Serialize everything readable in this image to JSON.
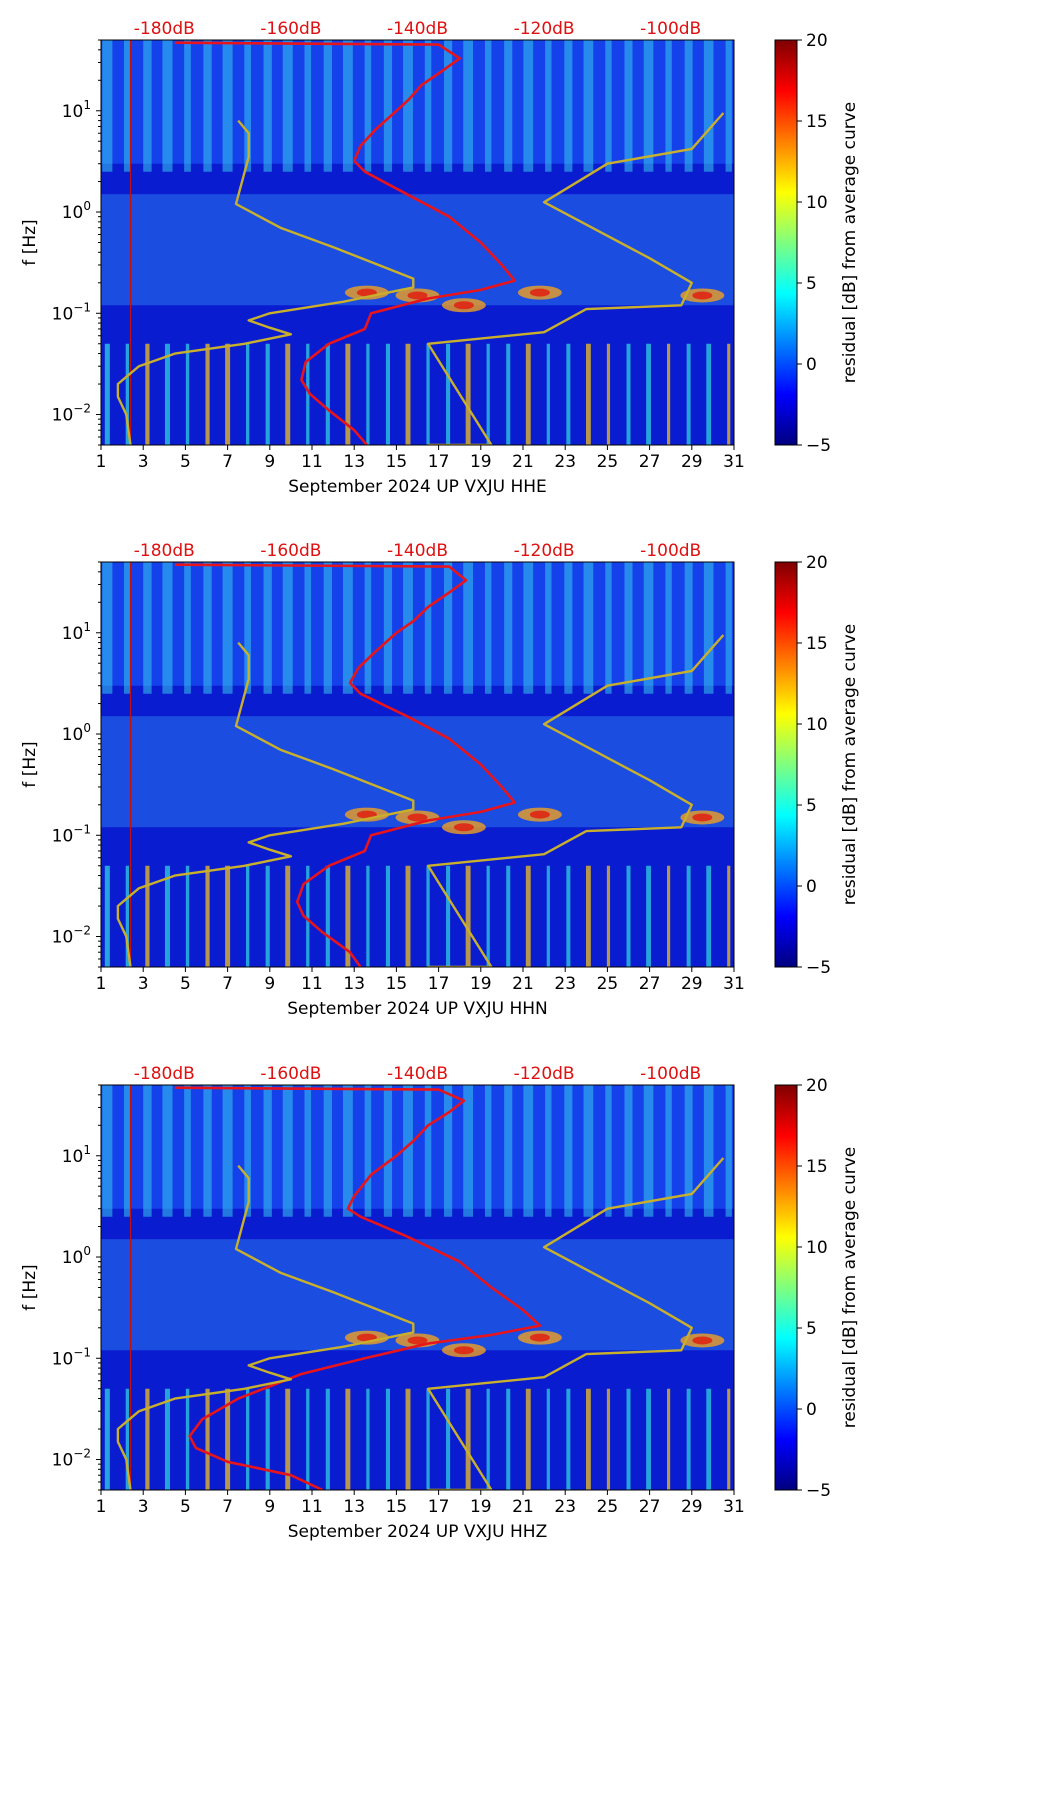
{
  "figure": {
    "colorbar_label": "residual [dB] from average curve",
    "colorbar_ticks": [
      "20",
      "15",
      "10",
      "5",
      "0",
      "−5"
    ],
    "colorbar_values": [
      20,
      15,
      10,
      5,
      0,
      -5
    ],
    "colormap_colors": [
      "#00007f",
      "#0000ff",
      "#007fff",
      "#00ffff",
      "#7fff7f",
      "#ffff00",
      "#ff7f00",
      "#ff0000",
      "#7f0000"
    ],
    "power_curve_color": "#e8141c",
    "daylength_curve_color": "#c9b02c",
    "top_axis_color": "#e01010"
  },
  "chart_data": [
    {
      "type": "heatmap",
      "xlabel": "September 2024 UP VXJU  HHE",
      "ylabel": "f [Hz]",
      "x_ticks": [
        "1",
        "3",
        "5",
        "7",
        "9",
        "11",
        "13",
        "15",
        "17",
        "19",
        "21",
        "23",
        "25",
        "27",
        "29",
        "31"
      ],
      "x_tick_values": [
        1,
        3,
        5,
        7,
        9,
        11,
        13,
        15,
        17,
        19,
        21,
        23,
        25,
        27,
        29,
        31
      ],
      "xlim": [
        1,
        31
      ],
      "y_scale": "log",
      "ylim": [
        0.005,
        50
      ],
      "y_ticks": [
        {
          "base": "10",
          "exp": "1",
          "value": 10
        },
        {
          "base": "10",
          "exp": "0",
          "value": 1
        },
        {
          "base": "10",
          "exp": "−1",
          "value": 0.1
        },
        {
          "base": "10",
          "exp": "−2",
          "value": 0.01
        }
      ],
      "top_axis_labels": [
        "-180dB",
        "-160dB",
        "-140dB",
        "-120dB",
        "-100dB"
      ],
      "top_axis_positions": [
        4.0,
        10.0,
        16.0,
        22.0,
        28.0
      ],
      "colorbar_range": [
        -5,
        20
      ],
      "series": [
        {
          "name": "average power curve",
          "points": [
            [
              13.6,
              0.005
            ],
            [
              13.0,
              0.007
            ],
            [
              11.8,
              0.011
            ],
            [
              10.9,
              0.016
            ],
            [
              10.5,
              0.022
            ],
            [
              10.7,
              0.033
            ],
            [
              11.8,
              0.05
            ],
            [
              13.5,
              0.07
            ],
            [
              13.8,
              0.1
            ],
            [
              16.5,
              0.14
            ],
            [
              19.0,
              0.17
            ],
            [
              20.6,
              0.21
            ],
            [
              20.0,
              0.3
            ],
            [
              19.0,
              0.5
            ],
            [
              17.5,
              0.9
            ],
            [
              15.5,
              1.5
            ],
            [
              13.5,
              2.5
            ],
            [
              13.0,
              3.2
            ],
            [
              13.3,
              4.5
            ],
            [
              14.0,
              6.5
            ],
            [
              15.0,
              10
            ],
            [
              15.6,
              13
            ],
            [
              16.2,
              18
            ],
            [
              17.2,
              25
            ],
            [
              18.0,
              33
            ],
            [
              17.0,
              45
            ],
            [
              4.5,
              47
            ]
          ]
        },
        {
          "name": "day-length curve",
          "points": [
            [
              2.4,
              0.005
            ],
            [
              2.2,
              0.01
            ],
            [
              1.8,
              0.015
            ],
            [
              1.8,
              0.02
            ],
            [
              2.8,
              0.03
            ],
            [
              4.5,
              0.04
            ],
            [
              7.8,
              0.05
            ],
            [
              10.0,
              0.062
            ],
            [
              9.0,
              0.072
            ],
            [
              8.0,
              0.085
            ],
            [
              9.0,
              0.1
            ],
            [
              12.5,
              0.13
            ],
            [
              15.8,
              0.18
            ],
            [
              15.8,
              0.22
            ],
            [
              12.0,
              0.45
            ],
            [
              9.5,
              0.7
            ],
            [
              7.4,
              1.2
            ],
            [
              8.0,
              3.5
            ],
            [
              8.0,
              6
            ],
            [
              7.5,
              8
            ],
            [
              16.5,
              0.005
            ],
            [
              19.5,
              0.005
            ],
            [
              16.5,
              0.05
            ],
            [
              22.0,
              0.065
            ],
            [
              24.0,
              0.11
            ],
            [
              28.5,
              0.12
            ],
            [
              29.0,
              0.2
            ],
            [
              27.0,
              0.35
            ],
            [
              22.0,
              1.25
            ],
            [
              25.0,
              3.0
            ],
            [
              29.0,
              4.2
            ],
            [
              30.5,
              9.5
            ]
          ]
        }
      ]
    },
    {
      "type": "heatmap",
      "xlabel": "September 2024 UP VXJU  HHN",
      "ylabel": "f [Hz]",
      "x_ticks": [
        "1",
        "3",
        "5",
        "7",
        "9",
        "11",
        "13",
        "15",
        "17",
        "19",
        "21",
        "23",
        "25",
        "27",
        "29",
        "31"
      ],
      "x_tick_values": [
        1,
        3,
        5,
        7,
        9,
        11,
        13,
        15,
        17,
        19,
        21,
        23,
        25,
        27,
        29,
        31
      ],
      "xlim": [
        1,
        31
      ],
      "y_scale": "log",
      "ylim": [
        0.005,
        50
      ],
      "y_ticks": [
        {
          "base": "10",
          "exp": "1",
          "value": 10
        },
        {
          "base": "10",
          "exp": "0",
          "value": 1
        },
        {
          "base": "10",
          "exp": "−1",
          "value": 0.1
        },
        {
          "base": "10",
          "exp": "−2",
          "value": 0.01
        }
      ],
      "top_axis_labels": [
        "-180dB",
        "-160dB",
        "-140dB",
        "-120dB",
        "-100dB"
      ],
      "top_axis_positions": [
        4.0,
        10.0,
        16.0,
        22.0,
        28.0
      ],
      "colorbar_range": [
        -5,
        20
      ],
      "series": [
        {
          "name": "average power curve",
          "points": [
            [
              13.3,
              0.005
            ],
            [
              12.8,
              0.007
            ],
            [
              11.5,
              0.011
            ],
            [
              10.6,
              0.016
            ],
            [
              10.3,
              0.022
            ],
            [
              10.6,
              0.033
            ],
            [
              11.8,
              0.05
            ],
            [
              13.5,
              0.07
            ],
            [
              13.8,
              0.1
            ],
            [
              16.5,
              0.14
            ],
            [
              19.0,
              0.17
            ],
            [
              20.6,
              0.21
            ],
            [
              20.0,
              0.3
            ],
            [
              19.0,
              0.5
            ],
            [
              17.5,
              0.9
            ],
            [
              15.5,
              1.5
            ],
            [
              13.3,
              2.5
            ],
            [
              12.8,
              3.2
            ],
            [
              13.2,
              4.5
            ],
            [
              14.0,
              6.5
            ],
            [
              15.0,
              10
            ],
            [
              15.8,
              13
            ],
            [
              16.5,
              18
            ],
            [
              17.5,
              25
            ],
            [
              18.3,
              33
            ],
            [
              17.5,
              45
            ],
            [
              4.5,
              47
            ]
          ]
        },
        {
          "name": "day-length curve",
          "points": [
            [
              2.4,
              0.005
            ],
            [
              2.2,
              0.01
            ],
            [
              1.8,
              0.015
            ],
            [
              1.8,
              0.02
            ],
            [
              2.8,
              0.03
            ],
            [
              4.5,
              0.04
            ],
            [
              7.8,
              0.05
            ],
            [
              10.0,
              0.062
            ],
            [
              9.0,
              0.072
            ],
            [
              8.0,
              0.085
            ],
            [
              9.0,
              0.1
            ],
            [
              12.5,
              0.13
            ],
            [
              15.8,
              0.18
            ],
            [
              15.8,
              0.22
            ],
            [
              12.0,
              0.45
            ],
            [
              9.5,
              0.7
            ],
            [
              7.4,
              1.2
            ],
            [
              8.0,
              3.5
            ],
            [
              8.0,
              6
            ],
            [
              7.5,
              8
            ],
            [
              16.5,
              0.005
            ],
            [
              19.5,
              0.005
            ],
            [
              16.5,
              0.05
            ],
            [
              22.0,
              0.065
            ],
            [
              24.0,
              0.11
            ],
            [
              28.5,
              0.12
            ],
            [
              29.0,
              0.2
            ],
            [
              27.0,
              0.35
            ],
            [
              22.0,
              1.25
            ],
            [
              25.0,
              3.0
            ],
            [
              29.0,
              4.2
            ],
            [
              30.5,
              9.5
            ]
          ]
        }
      ]
    },
    {
      "type": "heatmap",
      "xlabel": "September 2024 UP VXJU  HHZ",
      "ylabel": "f [Hz]",
      "x_ticks": [
        "1",
        "3",
        "5",
        "7",
        "9",
        "11",
        "13",
        "15",
        "17",
        "19",
        "21",
        "23",
        "25",
        "27",
        "29",
        "31"
      ],
      "x_tick_values": [
        1,
        3,
        5,
        7,
        9,
        11,
        13,
        15,
        17,
        19,
        21,
        23,
        25,
        27,
        29,
        31
      ],
      "xlim": [
        1,
        31
      ],
      "y_scale": "log",
      "ylim": [
        0.005,
        50
      ],
      "y_ticks": [
        {
          "base": "10",
          "exp": "1",
          "value": 10
        },
        {
          "base": "10",
          "exp": "0",
          "value": 1
        },
        {
          "base": "10",
          "exp": "−1",
          "value": 0.1
        },
        {
          "base": "10",
          "exp": "−2",
          "value": 0.01
        }
      ],
      "top_axis_labels": [
        "-180dB",
        "-160dB",
        "-140dB",
        "-120dB",
        "-100dB"
      ],
      "top_axis_positions": [
        4.0,
        10.0,
        16.0,
        22.0,
        28.0
      ],
      "colorbar_range": [
        -5,
        20
      ],
      "series": [
        {
          "name": "average power curve",
          "points": [
            [
              11.5,
              0.005
            ],
            [
              10.0,
              0.007
            ],
            [
              7.0,
              0.0095
            ],
            [
              5.5,
              0.013
            ],
            [
              5.2,
              0.017
            ],
            [
              5.8,
              0.025
            ],
            [
              7.5,
              0.04
            ],
            [
              10.5,
              0.07
            ],
            [
              13.5,
              0.1
            ],
            [
              16.5,
              0.14
            ],
            [
              19.5,
              0.17
            ],
            [
              21.8,
              0.21
            ],
            [
              21.0,
              0.3
            ],
            [
              19.5,
              0.5
            ],
            [
              18.0,
              0.9
            ],
            [
              15.5,
              1.6
            ],
            [
              13.3,
              2.5
            ],
            [
              12.7,
              3.0
            ],
            [
              13.0,
              4.0
            ],
            [
              13.8,
              6.5
            ],
            [
              15.0,
              10
            ],
            [
              15.8,
              14
            ],
            [
              16.5,
              20
            ],
            [
              17.5,
              27
            ],
            [
              18.2,
              35
            ],
            [
              17.0,
              45
            ],
            [
              4.5,
              47
            ]
          ]
        },
        {
          "name": "day-length curve",
          "points": [
            [
              2.4,
              0.005
            ],
            [
              2.2,
              0.01
            ],
            [
              1.8,
              0.015
            ],
            [
              1.8,
              0.02
            ],
            [
              2.8,
              0.03
            ],
            [
              4.5,
              0.04
            ],
            [
              7.8,
              0.05
            ],
            [
              10.0,
              0.062
            ],
            [
              9.0,
              0.072
            ],
            [
              8.0,
              0.085
            ],
            [
              9.0,
              0.1
            ],
            [
              12.5,
              0.13
            ],
            [
              15.8,
              0.18
            ],
            [
              15.8,
              0.22
            ],
            [
              12.0,
              0.45
            ],
            [
              9.5,
              0.7
            ],
            [
              7.4,
              1.2
            ],
            [
              8.0,
              3.5
            ],
            [
              8.0,
              6
            ],
            [
              7.5,
              8
            ],
            [
              16.5,
              0.005
            ],
            [
              19.5,
              0.005
            ],
            [
              16.5,
              0.05
            ],
            [
              22.0,
              0.065
            ],
            [
              24.0,
              0.11
            ],
            [
              28.5,
              0.12
            ],
            [
              29.0,
              0.2
            ],
            [
              27.0,
              0.35
            ],
            [
              22.0,
              1.25
            ],
            [
              25.0,
              3.0
            ],
            [
              29.0,
              4.2
            ],
            [
              30.5,
              9.5
            ]
          ]
        }
      ]
    }
  ]
}
